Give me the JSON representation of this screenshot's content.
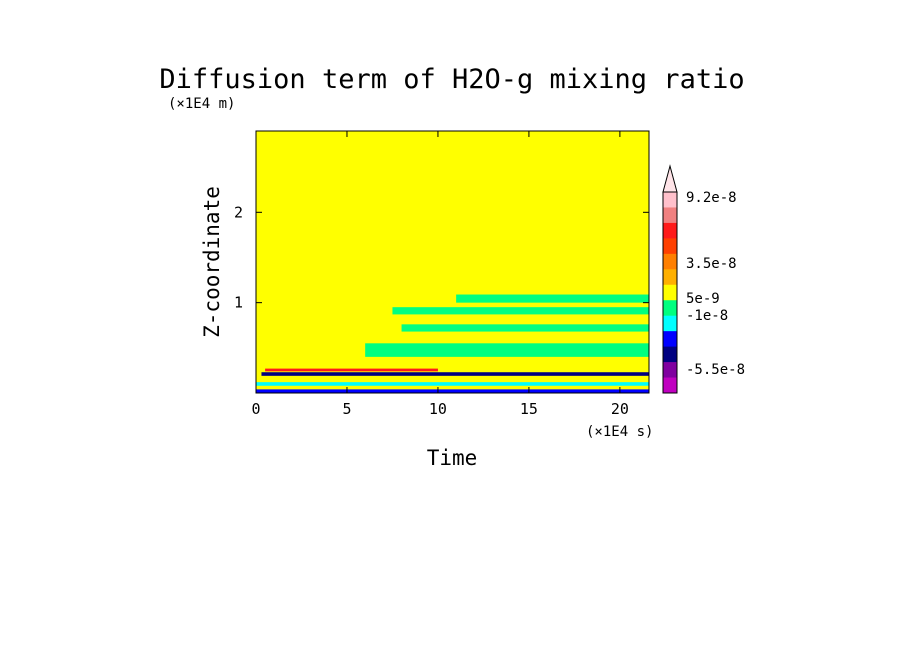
{
  "chart_data": {
    "type": "heatmap",
    "title": "Diffusion term of H2O-g mixing ratio",
    "xlabel": "Time",
    "ylabel": "Z-coordinate",
    "x_unit": "(×1E4 s)",
    "y_unit": "(×1E4 m)",
    "xlim": [
      0,
      21.6
    ],
    "ylim": [
      0,
      2.9
    ],
    "x_ticks": [
      "0",
      "5",
      "10",
      "15",
      "20"
    ],
    "y_ticks": [
      "1",
      "2"
    ],
    "x_tick_values": [
      0,
      5,
      10,
      15,
      20
    ],
    "y_tick_values": [
      1,
      2
    ],
    "background_level": "yellow (approximately 0)",
    "colorbar": {
      "labels": [
        "9.2e-8",
        "3.5e-8",
        "5e-9",
        "-1e-8",
        "-5.5e-8"
      ],
      "colors_top_to_bottom": [
        "#ffc0cb",
        "#f08080",
        "#ff1a1a",
        "#ff4000",
        "#ff7f00",
        "#ffb000",
        "#ffff00",
        "#00ff80",
        "#00ffff",
        "#0000ff",
        "#000080",
        "#8000a0",
        "#c000c0"
      ]
    },
    "bands": [
      {
        "name": "upper green band",
        "x": [
          11,
          21.6
        ],
        "y": [
          1.0,
          1.09
        ],
        "color": "#00ff80"
      },
      {
        "name": "green band 2",
        "x": [
          7.5,
          21.6
        ],
        "y": [
          0.87,
          0.95
        ],
        "color": "#00ff80"
      },
      {
        "name": "green band 3",
        "x": [
          8,
          21.6
        ],
        "y": [
          0.68,
          0.76
        ],
        "color": "#00ff80"
      },
      {
        "name": "green band 4",
        "x": [
          6,
          21.6
        ],
        "y": [
          0.4,
          0.55
        ],
        "color": "#00ff80"
      },
      {
        "name": "surface red layer",
        "x": [
          0.5,
          10
        ],
        "y": [
          0.24,
          0.27
        ],
        "color": "#ff1a1a"
      },
      {
        "name": "surface navy layer",
        "x": [
          0.3,
          21.6
        ],
        "y": [
          0.19,
          0.23
        ],
        "color": "#000080"
      },
      {
        "name": "surface cyan layer",
        "x": [
          0,
          21.6
        ],
        "y": [
          0.08,
          0.12
        ],
        "color": "#00ffff"
      },
      {
        "name": "surface blue layer",
        "x": [
          0,
          21.6
        ],
        "y": [
          0.0,
          0.04
        ],
        "color": "#0000ff"
      }
    ]
  }
}
